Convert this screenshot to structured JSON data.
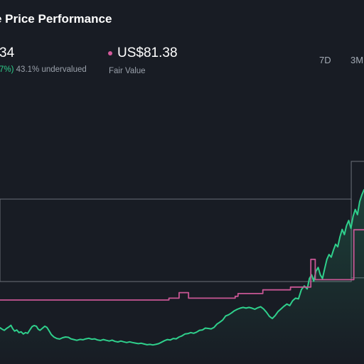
{
  "header": {
    "title": "e Price Performance",
    "price": "34",
    "change_text": "7%)",
    "undervalued_text": "43.1% undervalued"
  },
  "fair_value": {
    "value": "US$81.38",
    "label": "Fair Value"
  },
  "ranges": [
    {
      "label": "7D"
    },
    {
      "label": "3M"
    }
  ],
  "colors": {
    "background": "#181c24",
    "price_line": "#2fd08c",
    "fair_value_line": "#c85694",
    "box_stroke": "#6b7079"
  },
  "chart_data": {
    "type": "line",
    "title": "",
    "xlabel": "",
    "ylabel": "",
    "grid": false,
    "x_domain": [
      0,
      100
    ],
    "ylim": [
      0,
      100
    ],
    "series": [
      {
        "key": "price",
        "color": "#2fd08c",
        "area_fill": true,
        "points": [
          [
            0,
            10.0
          ],
          [
            0.6,
            9.2
          ],
          [
            1.2,
            8.6
          ],
          [
            1.8,
            9.6
          ],
          [
            2.4,
            10.4
          ],
          [
            3.0,
            11.3
          ],
          [
            3.5,
            9.5
          ],
          [
            4.0,
            8.2
          ],
          [
            4.6,
            8.8
          ],
          [
            5.2,
            7.4
          ],
          [
            5.8,
            7.8
          ],
          [
            6.4,
            6.6
          ],
          [
            7.0,
            7.4
          ],
          [
            7.6,
            7.0
          ],
          [
            8.2,
            8.8
          ],
          [
            8.8,
            10.6
          ],
          [
            9.4,
            11.2
          ],
          [
            10.0,
            10.8
          ],
          [
            10.5,
            9.2
          ],
          [
            11.0,
            8.6
          ],
          [
            11.7,
            9.8
          ],
          [
            12.3,
            10.8
          ],
          [
            12.9,
            10.2
          ],
          [
            13.5,
            8.3
          ],
          [
            14.1,
            6.3
          ],
          [
            14.8,
            5.0
          ],
          [
            15.6,
            4.2
          ],
          [
            16.4,
            3.9
          ],
          [
            17.2,
            4.6
          ],
          [
            18.0,
            5.0
          ],
          [
            18.8,
            4.8
          ],
          [
            19.5,
            4.0
          ],
          [
            20.3,
            3.6
          ],
          [
            21.1,
            3.2
          ],
          [
            22.0,
            3.7
          ],
          [
            22.8,
            3.5
          ],
          [
            23.6,
            4.0
          ],
          [
            24.4,
            4.3
          ],
          [
            25.2,
            3.8
          ],
          [
            26.0,
            4.0
          ],
          [
            26.8,
            3.4
          ],
          [
            27.6,
            3.1
          ],
          [
            28.4,
            3.6
          ],
          [
            29.2,
            3.2
          ],
          [
            30.0,
            2.8
          ],
          [
            30.8,
            3.3
          ],
          [
            31.6,
            2.6
          ],
          [
            32.4,
            2.3
          ],
          [
            33.2,
            2.8
          ],
          [
            34.0,
            2.4
          ],
          [
            34.8,
            2.0
          ],
          [
            35.6,
            2.4
          ],
          [
            36.4,
            2.0
          ],
          [
            37.2,
            1.7
          ],
          [
            38.0,
            1.4
          ],
          [
            38.8,
            1.6
          ],
          [
            39.6,
            1.2
          ],
          [
            40.4,
            0.8
          ],
          [
            41.2,
            1.0
          ],
          [
            42.0,
            0.7
          ],
          [
            42.8,
            1.0
          ],
          [
            43.6,
            1.4
          ],
          [
            44.4,
            2.2
          ],
          [
            45.2,
            3.0
          ],
          [
            46.0,
            3.6
          ],
          [
            46.8,
            3.4
          ],
          [
            47.6,
            4.2
          ],
          [
            48.4,
            4.0
          ],
          [
            49.2,
            5.0
          ],
          [
            50.0,
            5.6
          ],
          [
            50.8,
            6.6
          ],
          [
            51.6,
            6.8
          ],
          [
            52.4,
            7.4
          ],
          [
            53.2,
            7.0
          ],
          [
            54.0,
            7.6
          ],
          [
            54.8,
            8.6
          ],
          [
            55.6,
            8.8
          ],
          [
            56.4,
            9.8
          ],
          [
            57.2,
            9.6
          ],
          [
            58.0,
            9.4
          ],
          [
            58.8,
            10.2
          ],
          [
            59.6,
            12.0
          ],
          [
            60.4,
            13.0
          ],
          [
            61.2,
            14.2
          ],
          [
            62.0,
            16.4
          ],
          [
            62.8,
            17.0
          ],
          [
            63.6,
            18.0
          ],
          [
            64.4,
            19.2
          ],
          [
            65.2,
            20.0
          ],
          [
            66.0,
            20.6
          ],
          [
            66.8,
            21.0
          ],
          [
            67.6,
            20.6
          ],
          [
            68.4,
            21.0
          ],
          [
            69.2,
            20.6
          ],
          [
            70.0,
            20.0
          ],
          [
            70.8,
            20.8
          ],
          [
            71.6,
            21.4
          ],
          [
            72.4,
            20.2
          ],
          [
            73.2,
            18.4
          ],
          [
            74.0,
            16.2
          ],
          [
            74.8,
            15.0
          ],
          [
            75.6,
            16.6
          ],
          [
            76.4,
            18.8
          ],
          [
            77.2,
            20.2
          ],
          [
            78.0,
            21.6
          ],
          [
            78.8,
            22.8
          ],
          [
            79.6,
            22.0
          ],
          [
            80.4,
            24.6
          ],
          [
            81.2,
            26.0
          ],
          [
            82.0,
            25.6
          ],
          [
            82.8,
            30.6
          ],
          [
            83.6,
            32.6
          ],
          [
            84.4,
            31.0
          ],
          [
            85.0,
            36.6
          ],
          [
            85.6,
            38.6
          ],
          [
            86.2,
            35.2
          ],
          [
            86.8,
            40.6
          ],
          [
            87.4,
            42.6
          ],
          [
            88.0,
            38.6
          ],
          [
            88.6,
            36.6
          ],
          [
            89.2,
            42.0
          ],
          [
            89.8,
            47.0
          ],
          [
            90.4,
            49.6
          ],
          [
            91.0,
            48.2
          ],
          [
            91.6,
            52.0
          ],
          [
            92.2,
            55.2
          ],
          [
            92.8,
            53.8
          ],
          [
            93.4,
            59.2
          ],
          [
            94.0,
            63.2
          ],
          [
            94.6,
            60.4
          ],
          [
            95.2,
            65.2
          ],
          [
            95.8,
            68.0
          ],
          [
            96.4,
            63.8
          ],
          [
            97.0,
            70.2
          ],
          [
            97.6,
            74.0
          ],
          [
            98.2,
            71.2
          ],
          [
            98.8,
            78.2
          ],
          [
            99.4,
            81.8
          ],
          [
            100,
            84.6
          ]
        ]
      },
      {
        "key": "fair_value",
        "color": "#c85694",
        "step": true,
        "points": [
          [
            0,
            25.0
          ],
          [
            46.4,
            25.0
          ],
          [
            46.4,
            26.0
          ],
          [
            49.2,
            26.0
          ],
          [
            49.2,
            29.0
          ],
          [
            51.8,
            29.0
          ],
          [
            51.8,
            26.0
          ],
          [
            64.6,
            26.0
          ],
          [
            64.6,
            27.0
          ],
          [
            65.4,
            27.0
          ],
          [
            65.4,
            28.5
          ],
          [
            72.2,
            28.5
          ],
          [
            72.2,
            30.5
          ],
          [
            79.8,
            30.5
          ],
          [
            79.8,
            32.0
          ],
          [
            85.4,
            32.0
          ],
          [
            85.4,
            47.0
          ],
          [
            86.6,
            47.0
          ],
          [
            86.6,
            36.0
          ],
          [
            97.2,
            36.0
          ],
          [
            97.2,
            63.0
          ],
          [
            100,
            63.0
          ]
        ]
      }
    ],
    "highlight_boxes": [
      {
        "x0": 0,
        "x1": 96.5,
        "y0": 35.0,
        "y1": 79.6
      },
      {
        "x0": 96.5,
        "x1": 100,
        "y0": 37.0,
        "y1": 100
      }
    ]
  }
}
